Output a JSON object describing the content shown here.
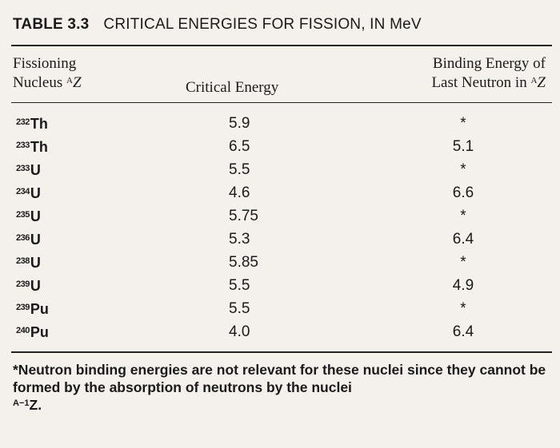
{
  "table": {
    "number": "TABLE 3.3",
    "title": "CRITICAL ENERGIES FOR FISSION, IN MeV",
    "headers": {
      "nucleus_line1": "Fissioning",
      "nucleus_line2": "Nucleus",
      "nucleus_sup": "A",
      "nucleus_symbol": "Z",
      "critical": "Critical Energy",
      "binding_line1": "Binding Energy of",
      "binding_line2": "Last Neutron in",
      "binding_sup": "A",
      "binding_symbol": "Z"
    },
    "rows": [
      {
        "mass": "232",
        "element": "Th",
        "critical": "5.9",
        "binding": "*"
      },
      {
        "mass": "233",
        "element": "Th",
        "critical": "6.5",
        "binding": "5.1"
      },
      {
        "mass": "233",
        "element": "U",
        "critical": "5.5",
        "binding": "*"
      },
      {
        "mass": "234",
        "element": "U",
        "critical": "4.6",
        "binding": "6.6"
      },
      {
        "mass": "235",
        "element": "U",
        "critical": "5.75",
        "binding": "*"
      },
      {
        "mass": "236",
        "element": "U",
        "critical": "5.3",
        "binding": "6.4"
      },
      {
        "mass": "238",
        "element": "U",
        "critical": "5.85",
        "binding": "*"
      },
      {
        "mass": "239",
        "element": "U",
        "critical": "5.5",
        "binding": "4.9"
      },
      {
        "mass": "239",
        "element": "Pu",
        "critical": "5.5",
        "binding": "*"
      },
      {
        "mass": "240",
        "element": "Pu",
        "critical": "4.0",
        "binding": "6.4"
      }
    ],
    "footnote": {
      "text": "*Neutron binding energies are not relevant for these nuclei since they cannot be formed by the absorption of neutrons by the nuclei",
      "sup": "A−1",
      "symbol": "Z."
    }
  }
}
